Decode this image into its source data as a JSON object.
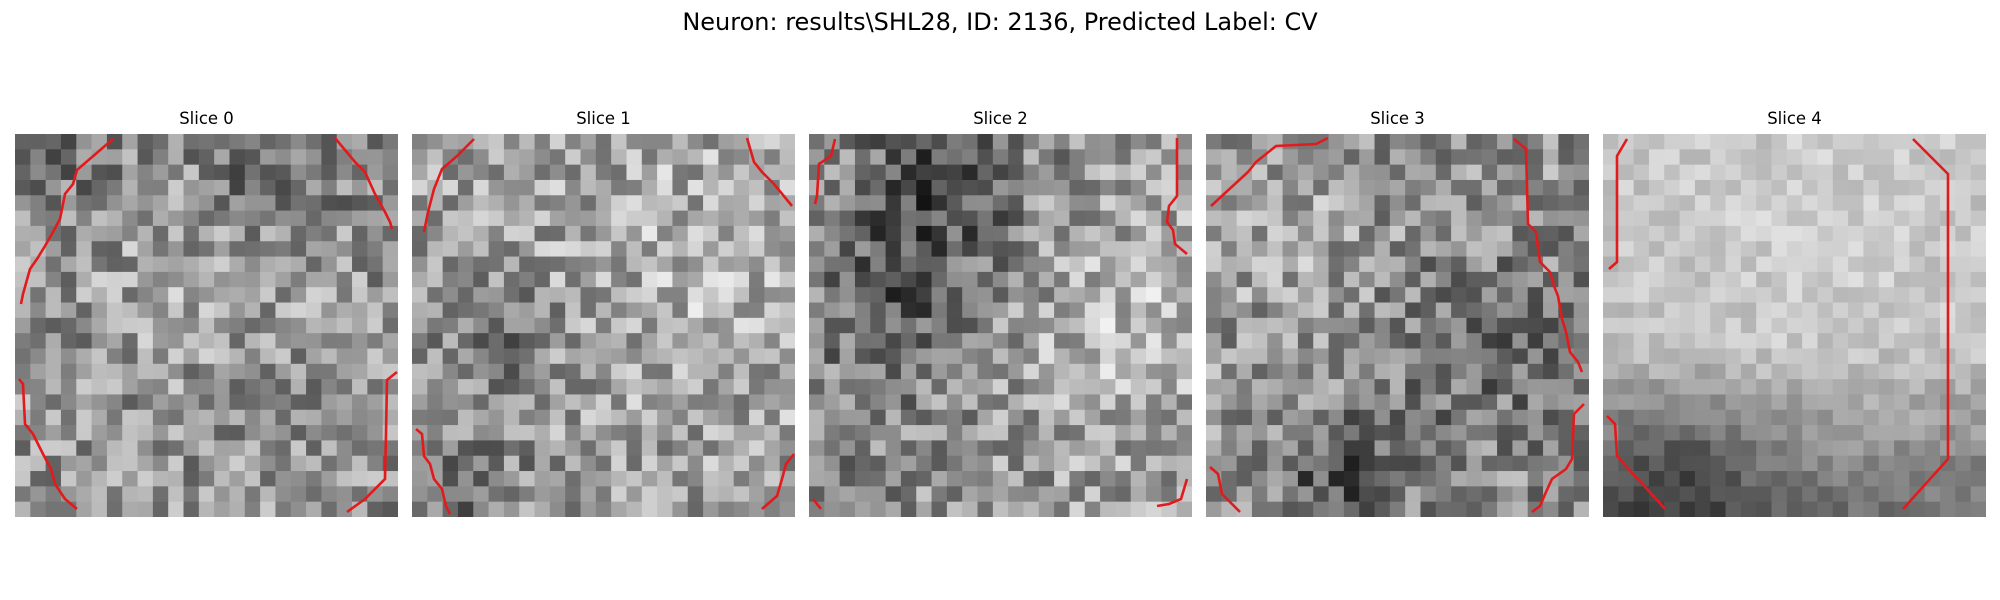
{
  "figure": {
    "title": "Neuron: results\\SHL28, ID: 2136, Predicted Label: CV"
  },
  "slices": [
    {
      "title": "Slice 0"
    },
    {
      "title": "Slice 1"
    },
    {
      "title": "Slice 2"
    },
    {
      "title": "Slice 3"
    },
    {
      "title": "Slice 4"
    }
  ],
  "colors": {
    "background": "#ffffff",
    "contour": "#e31a1c",
    "text": "#000000"
  }
}
